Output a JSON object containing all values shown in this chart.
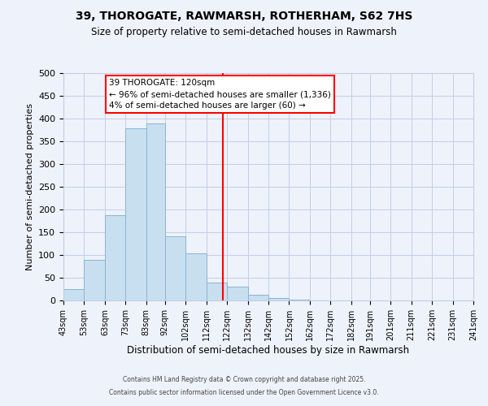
{
  "title": "39, THOROGATE, RAWMARSH, ROTHERHAM, S62 7HS",
  "subtitle": "Size of property relative to semi-detached houses in Rawmarsh",
  "xlabel": "Distribution of semi-detached houses by size in Rawmarsh",
  "ylabel": "Number of semi-detached properties",
  "bin_labels": [
    "43sqm",
    "53sqm",
    "63sqm",
    "73sqm",
    "83sqm",
    "92sqm",
    "102sqm",
    "112sqm",
    "122sqm",
    "132sqm",
    "142sqm",
    "152sqm",
    "162sqm",
    "172sqm",
    "182sqm",
    "191sqm",
    "201sqm",
    "211sqm",
    "221sqm",
    "231sqm",
    "241sqm"
  ],
  "bin_edges": [
    43,
    53,
    63,
    73,
    83,
    92,
    102,
    112,
    122,
    132,
    142,
    152,
    162,
    172,
    182,
    191,
    201,
    211,
    221,
    231,
    241
  ],
  "bar_heights": [
    25,
    89,
    187,
    378,
    390,
    141,
    103,
    40,
    30,
    12,
    6,
    2,
    0,
    0,
    0,
    0,
    0,
    0,
    0,
    0
  ],
  "bar_color": "#c8dff0",
  "bar_edge_color": "#8ab4d4",
  "vline_x": 120,
  "vline_color": "red",
  "annotation_title": "39 THOROGATE: 120sqm",
  "annotation_line1": "← 96% of semi-detached houses are smaller (1,336)",
  "annotation_line2": "4% of semi-detached houses are larger (60) →",
  "annotation_box_color": "#ffffff",
  "annotation_box_edge": "red",
  "ylim": [
    0,
    500
  ],
  "yticks": [
    0,
    50,
    100,
    150,
    200,
    250,
    300,
    350,
    400,
    450,
    500
  ],
  "footer1": "Contains HM Land Registry data © Crown copyright and database right 2025.",
  "footer2": "Contains public sector information licensed under the Open Government Licence v3.0.",
  "background_color": "#eef2fa",
  "grid_color": "#c5cde8"
}
